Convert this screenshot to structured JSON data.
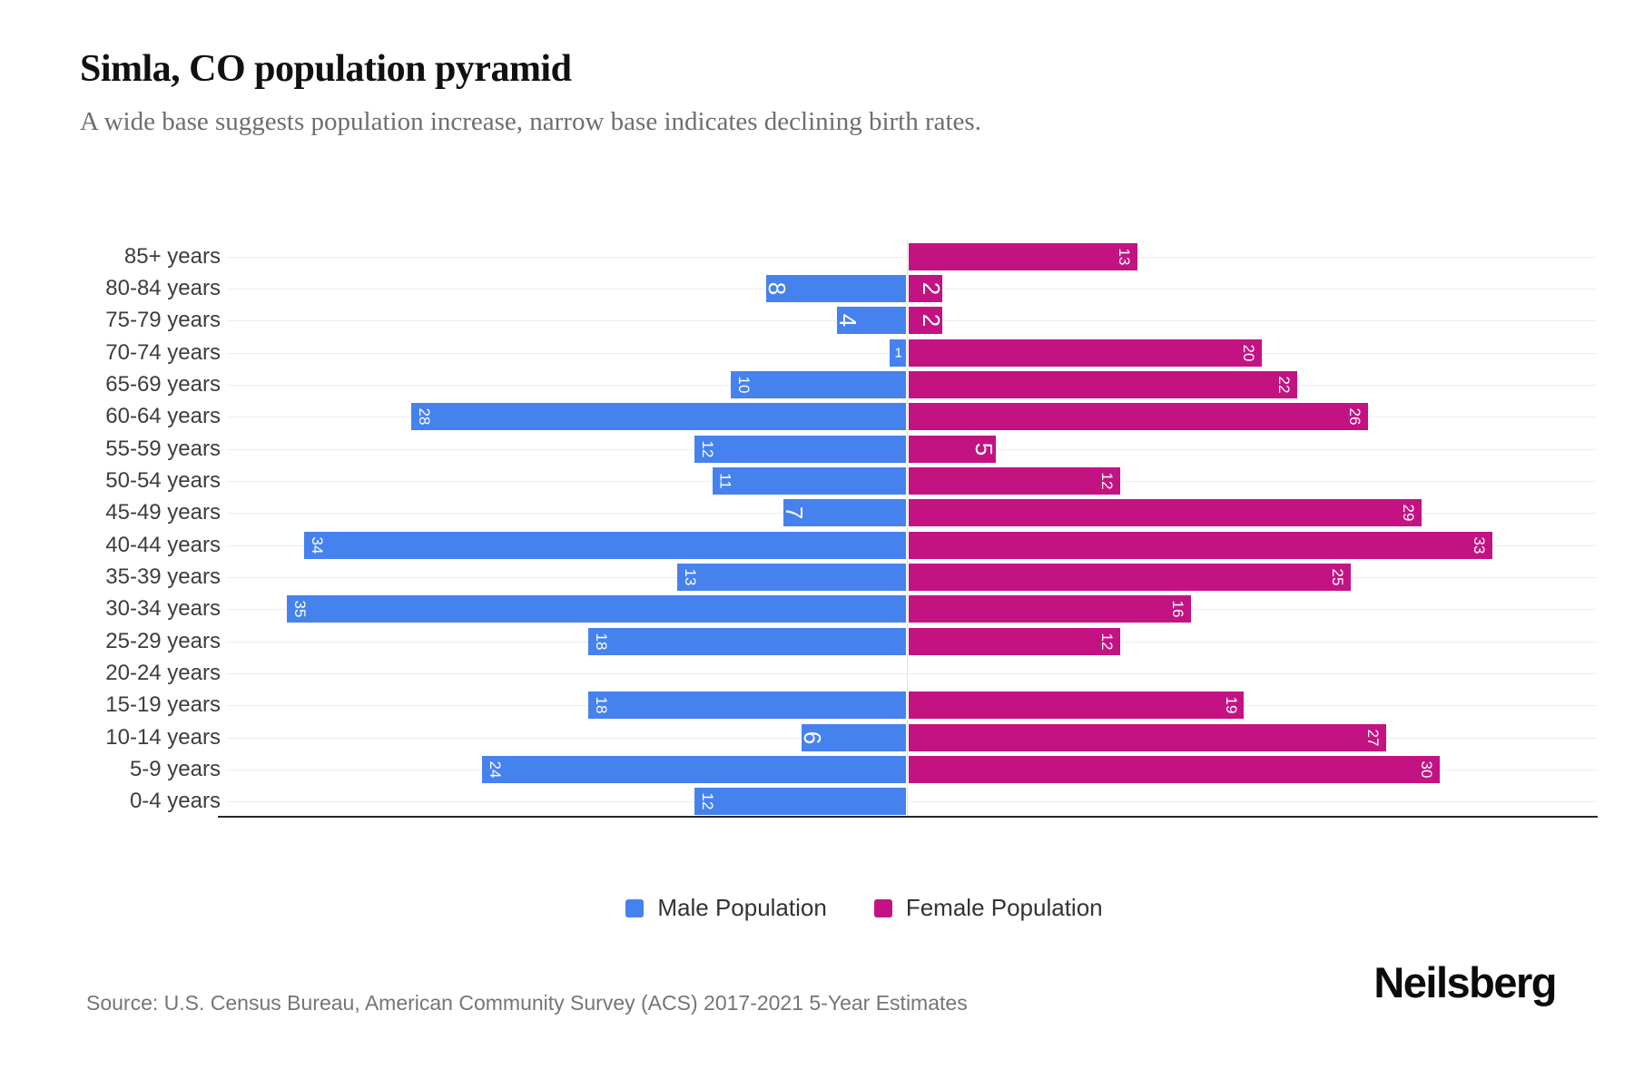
{
  "header": {
    "title": "Simla, CO population pyramid",
    "subtitle": "A wide base suggests population increase, narrow base indicates declining birth rates."
  },
  "chart_data": {
    "type": "bar",
    "variant": "population-pyramid",
    "categories": [
      "85+ years",
      "80-84 years",
      "75-79 years",
      "70-74 years",
      "65-69 years",
      "60-64 years",
      "55-59 years",
      "50-54 years",
      "45-49 years",
      "40-44 years",
      "35-39 years",
      "30-34 years",
      "25-29 years",
      "20-24 years",
      "15-19 years",
      "10-14 years",
      "5-9 years",
      "0-4 years"
    ],
    "series": [
      {
        "name": "Male Population",
        "side": "left",
        "color": "#4682EE",
        "values": [
          0,
          8,
          4,
          1,
          10,
          28,
          12,
          11,
          7,
          34,
          13,
          35,
          18,
          0,
          18,
          6,
          24,
          12
        ]
      },
      {
        "name": "Female Population",
        "side": "right",
        "color": "#C31383",
        "values": [
          13,
          2,
          2,
          20,
          22,
          26,
          5,
          12,
          29,
          33,
          25,
          16,
          12,
          0,
          19,
          27,
          30,
          0
        ]
      }
    ],
    "value_labels_inside_bars": true,
    "axis": {
      "value_axis_ticks_shown": false,
      "max_value_per_side": 35,
      "grid": true
    },
    "legend_position": "bottom-center"
  },
  "legend": {
    "items": [
      {
        "label": "Male Population",
        "color": "#4682EE"
      },
      {
        "label": "Female Population",
        "color": "#C31383"
      }
    ]
  },
  "footer": {
    "source": "Source: U.S. Census Bureau, American Community Survey (ACS) 2017-2021 5-Year Estimates",
    "brand": "Neilsberg"
  }
}
